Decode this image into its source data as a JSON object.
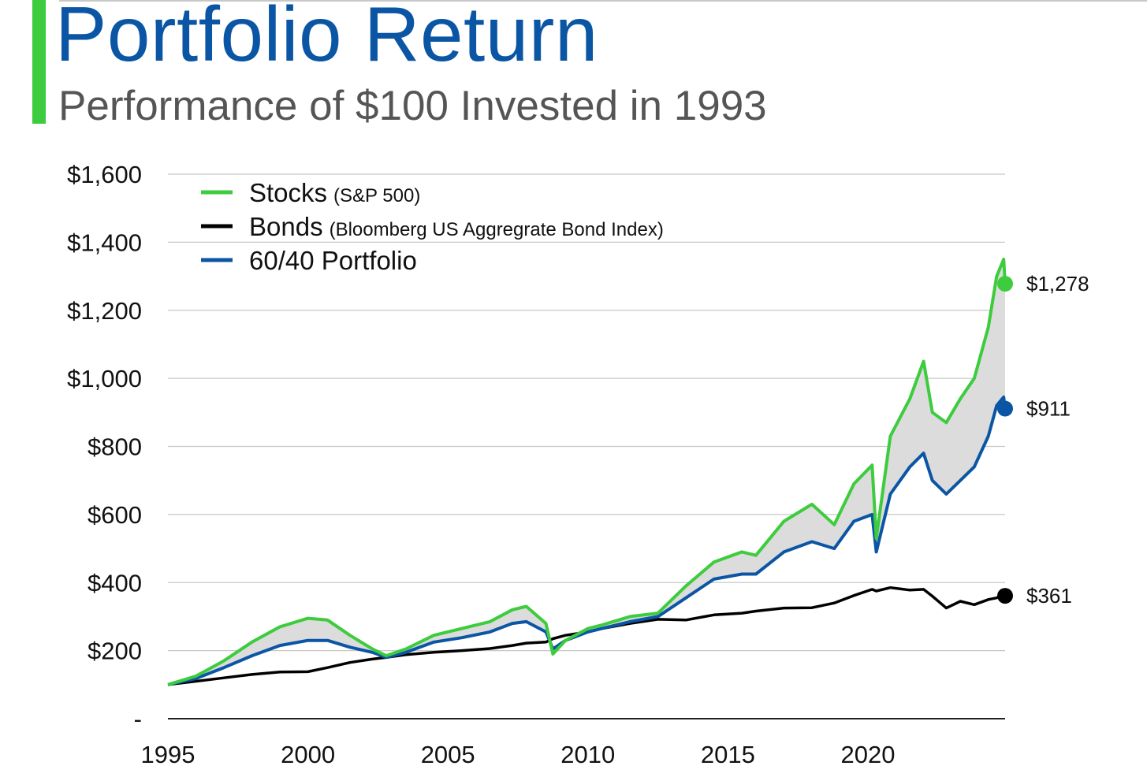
{
  "header": {
    "title": "Portfolio Return",
    "subtitle": "Performance of $100 Invested in 1993"
  },
  "colors": {
    "stocks": "#3dcc3d",
    "bonds": "#000000",
    "portfolio": "#0b56a4",
    "band_fill": "#dcdcdc",
    "grid": "#c8c8c8",
    "title": "#0b56a4",
    "accent": "#3dcc3d"
  },
  "chart_data": {
    "type": "line",
    "title": "Portfolio Return",
    "subtitle": "Performance of $100 Invested in 1993",
    "xlabel": "",
    "ylabel": "",
    "xlim": [
      1995,
      2024.9
    ],
    "ylim": [
      0,
      1600
    ],
    "grid": true,
    "legend_position": "top-left",
    "y_ticks": [
      {
        "value": 0,
        "label": "-"
      },
      {
        "value": 200,
        "label": "$200"
      },
      {
        "value": 400,
        "label": "$400"
      },
      {
        "value": 600,
        "label": "$600"
      },
      {
        "value": 800,
        "label": "$800"
      },
      {
        "value": 1000,
        "label": "$1,000"
      },
      {
        "value": 1200,
        "label": "$1,200"
      },
      {
        "value": 1400,
        "label": "$1,400"
      },
      {
        "value": 1600,
        "label": "$1,600"
      }
    ],
    "x_ticks": [
      {
        "value": 1995,
        "label": "1995"
      },
      {
        "value": 2000,
        "label": "2000"
      },
      {
        "value": 2005,
        "label": "2005"
      },
      {
        "value": 2010,
        "label": "2010"
      },
      {
        "value": 2015,
        "label": "2015"
      },
      {
        "value": 2020,
        "label": "2020"
      }
    ],
    "x": [
      1995.0,
      1996.0,
      1997.0,
      1998.0,
      1999.0,
      2000.0,
      2000.7,
      2001.5,
      2002.3,
      2002.8,
      2003.5,
      2004.5,
      2005.5,
      2006.5,
      2007.3,
      2007.8,
      2008.5,
      2008.75,
      2009.2,
      2010.0,
      2010.5,
      2011.5,
      2012.5,
      2013.5,
      2014.5,
      2015.5,
      2016.0,
      2017.0,
      2018.0,
      2018.8,
      2019.5,
      2020.15,
      2020.3,
      2020.8,
      2021.5,
      2021.99,
      2022.3,
      2022.8,
      2023.3,
      2023.8,
      2024.3,
      2024.6,
      2024.85,
      2024.9
    ],
    "series": [
      {
        "name": "Stocks",
        "legend_label": "Stocks",
        "legend_note": "(S&P 500)",
        "end_label": "$1,278",
        "end_value": 1278,
        "values": [
          100,
          125,
          170,
          225,
          270,
          295,
          290,
          245,
          205,
          185,
          205,
          245,
          265,
          285,
          320,
          330,
          280,
          190,
          230,
          265,
          275,
          300,
          310,
          390,
          460,
          490,
          480,
          580,
          630,
          570,
          690,
          745,
          530,
          830,
          940,
          1050,
          900,
          870,
          940,
          1000,
          1150,
          1300,
          1350,
          1278
        ]
      },
      {
        "name": "Bonds",
        "legend_label": "Bonds",
        "legend_note": "(Bloomberg US Aggregrate Bond Index)",
        "end_label": "$361",
        "end_value": 361,
        "values": [
          100,
          110,
          120,
          130,
          137,
          138,
          150,
          165,
          175,
          180,
          188,
          195,
          200,
          206,
          215,
          222,
          225,
          235,
          245,
          255,
          265,
          280,
          292,
          290,
          305,
          310,
          316,
          325,
          326,
          340,
          362,
          380,
          375,
          385,
          378,
          380,
          360,
          325,
          345,
          335,
          350,
          355,
          365,
          361
        ]
      },
      {
        "name": "60/40 Portfolio",
        "legend_label": "60/40 Portfolio",
        "legend_note": "",
        "end_label": "$911",
        "end_value": 911,
        "values": [
          100,
          118,
          150,
          185,
          215,
          230,
          230,
          210,
          195,
          180,
          195,
          225,
          238,
          255,
          280,
          285,
          255,
          205,
          230,
          255,
          265,
          285,
          300,
          355,
          410,
          425,
          425,
          490,
          520,
          500,
          580,
          600,
          490,
          660,
          740,
          780,
          700,
          660,
          700,
          740,
          830,
          920,
          945,
          911
        ]
      }
    ]
  }
}
